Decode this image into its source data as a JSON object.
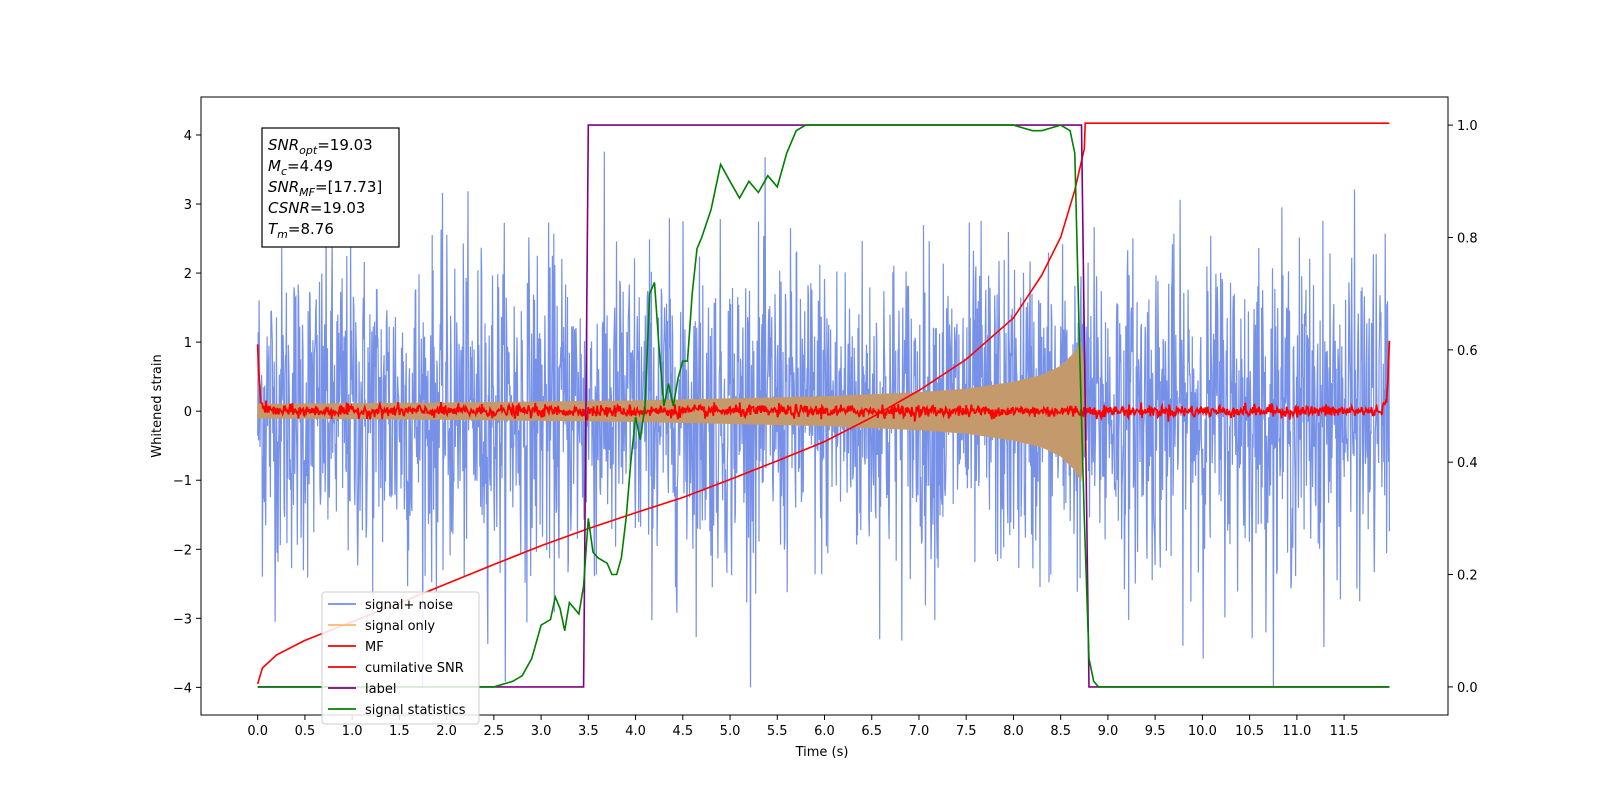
{
  "chart_data": {
    "type": "line",
    "xlabel": "Time (s)",
    "ylabel": "Whitened strain",
    "xlim": [
      -0.6,
      12.6
    ],
    "ylim_left": [
      -4.4,
      4.55
    ],
    "ylim_right": [
      -0.05,
      1.05
    ],
    "x_ticks": [
      0.0,
      0.5,
      1.0,
      1.5,
      2.0,
      2.5,
      3.0,
      3.5,
      4.0,
      4.5,
      5.0,
      5.5,
      6.0,
      6.5,
      7.0,
      7.5,
      8.0,
      8.5,
      9.0,
      9.5,
      10.0,
      10.5,
      11.0,
      11.5
    ],
    "x_tick_labels": [
      "0.0",
      "0.5",
      "1.0",
      "1.5",
      "2.0",
      "2.5",
      "3.0",
      "3.5",
      "4.0",
      "4.5",
      "5.0",
      "5.5",
      "6.0",
      "6.5",
      "7.0",
      "7.5",
      "8.0",
      "8.5",
      "9.0",
      "9.5",
      "10.0",
      "10.5",
      "11.0",
      "11.5"
    ],
    "y_ticks_left": [
      4,
      3,
      2,
      1,
      0,
      -1,
      -2,
      -3,
      -4
    ],
    "y_tick_labels_left": [
      "4",
      "3",
      "2",
      "1",
      "0",
      "−1",
      "−2",
      "−3",
      "−4"
    ],
    "y_ticks_right": [
      1.0,
      0.8,
      0.6,
      0.4,
      0.2,
      0.0
    ],
    "y_tick_labels_right": [
      "1.0",
      "0.8",
      "0.6",
      "0.4",
      "0.2",
      "0.0"
    ],
    "colors": {
      "signal_noise": "#6f8be6",
      "signal_only": "#c49a6c",
      "mf": "#ff0000",
      "csnr": "#ff0000",
      "label": "#800080",
      "stats": "#008000"
    },
    "series": [
      {
        "name": "signal+ noise",
        "axis": "left",
        "t_start": 0.0,
        "t_end": 11.98,
        "amplitude_range_approx": [
          -4.0,
          4.2
        ]
      },
      {
        "name": "signal only",
        "axis": "left",
        "t_start": 0.0,
        "t_end": 8.78,
        "envelope": {
          "t": [
            0.0,
            2.0,
            4.0,
            5.0,
            6.0,
            7.0,
            7.5,
            8.0,
            8.3,
            8.5,
            8.65,
            8.72,
            8.78
          ],
          "a": [
            0.1,
            0.12,
            0.15,
            0.18,
            0.21,
            0.27,
            0.32,
            0.42,
            0.52,
            0.65,
            0.85,
            1.02,
            0.0
          ]
        }
      },
      {
        "name": "MF",
        "axis": "left",
        "t": [
          0.0,
          0.02,
          0.05,
          0.15,
          11.85,
          11.95,
          11.98
        ],
        "y": [
          1.0,
          0.3,
          0.05,
          0.0,
          0.0,
          0.1,
          0.95
        ]
      },
      {
        "name": "cumilative SNR",
        "axis": "left",
        "t": [
          0.0,
          0.05,
          0.2,
          0.5,
          1.0,
          1.5,
          2.0,
          2.5,
          3.0,
          3.5,
          4.0,
          4.5,
          5.0,
          5.5,
          6.0,
          6.5,
          7.0,
          7.5,
          8.0,
          8.3,
          8.5,
          8.65,
          8.75,
          8.76,
          11.98
        ],
        "y": [
          -3.95,
          -3.72,
          -3.53,
          -3.32,
          -3.05,
          -2.78,
          -2.5,
          -2.22,
          -1.95,
          -1.7,
          -1.47,
          -1.25,
          -0.99,
          -0.72,
          -0.44,
          -0.09,
          0.3,
          0.75,
          1.35,
          1.97,
          2.52,
          3.2,
          3.8,
          4.17,
          4.17
        ]
      },
      {
        "name": "label",
        "axis": "right",
        "t": [
          0.0,
          3.45,
          3.5,
          8.72,
          8.8,
          11.98
        ],
        "y": [
          0.0,
          0.0,
          1.0,
          1.0,
          0.0,
          0.0
        ]
      },
      {
        "name": "signal statistics",
        "axis": "right",
        "t": [
          0.0,
          0.5,
          1.0,
          1.5,
          2.0,
          2.5,
          2.7,
          2.8,
          2.9,
          2.95,
          3.0,
          3.1,
          3.15,
          3.2,
          3.25,
          3.3,
          3.35,
          3.4,
          3.45,
          3.5,
          3.55,
          3.6,
          3.7,
          3.75,
          3.8,
          3.85,
          3.9,
          3.95,
          4.0,
          4.05,
          4.1,
          4.15,
          4.2,
          4.25,
          4.3,
          4.35,
          4.4,
          4.45,
          4.5,
          4.55,
          4.6,
          4.65,
          4.7,
          4.8,
          4.9,
          5.0,
          5.1,
          5.2,
          5.3,
          5.4,
          5.5,
          5.6,
          5.7,
          5.8,
          5.9,
          6.0,
          6.5,
          7.0,
          7.5,
          8.0,
          8.2,
          8.3,
          8.5,
          8.6,
          8.65,
          8.7,
          8.75,
          8.8,
          8.85,
          8.9,
          9.0,
          11.98
        ],
        "y": [
          0.0,
          0.0,
          0.0,
          0.0,
          0.0,
          0.0,
          0.01,
          0.02,
          0.05,
          0.08,
          0.11,
          0.12,
          0.16,
          0.14,
          0.1,
          0.15,
          0.14,
          0.13,
          0.18,
          0.3,
          0.24,
          0.23,
          0.22,
          0.2,
          0.2,
          0.23,
          0.3,
          0.4,
          0.48,
          0.44,
          0.5,
          0.7,
          0.72,
          0.6,
          0.5,
          0.54,
          0.5,
          0.55,
          0.58,
          0.58,
          0.7,
          0.78,
          0.8,
          0.85,
          0.93,
          0.9,
          0.87,
          0.9,
          0.88,
          0.91,
          0.89,
          0.95,
          0.99,
          1.0,
          1.0,
          1.0,
          1.0,
          1.0,
          1.0,
          1.0,
          0.99,
          0.99,
          1.0,
          0.99,
          0.95,
          0.6,
          0.3,
          0.05,
          0.01,
          0.0,
          0.0,
          0.0
        ]
      }
    ],
    "legend": {
      "position": "lower-left",
      "entries": [
        {
          "label": "signal+ noise",
          "color": "#6f8be6"
        },
        {
          "label": "signal only",
          "color": "#ffb86c"
        },
        {
          "label": "MF",
          "color": "#ff0000"
        },
        {
          "label": "cumilative SNR",
          "color": "#ff0000"
        },
        {
          "label": "label",
          "color": "#800080"
        },
        {
          "label": "signal statistics",
          "color": "#008000"
        }
      ]
    },
    "annotations": [
      {
        "name": "SNR",
        "sub": "opt",
        "value": "=19.03"
      },
      {
        "name": "M",
        "sub": "c",
        "value": "=4.49"
      },
      {
        "name": "SNR",
        "sub": "MF",
        "value": "=[17.73]"
      },
      {
        "name": "CSNR",
        "sub": "",
        "value": "=19.03"
      },
      {
        "name": "T",
        "sub": "m",
        "value": "=8.76"
      }
    ]
  }
}
